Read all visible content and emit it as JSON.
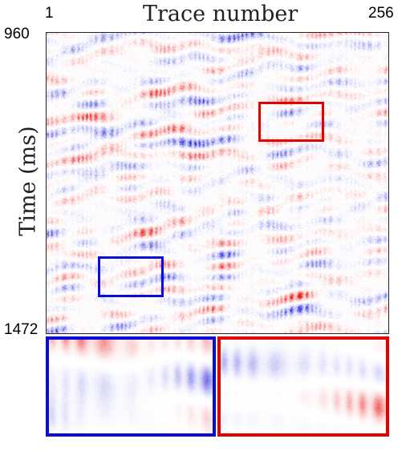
{
  "figure": {
    "title": "Trace number",
    "x_tick_start": "1",
    "x_tick_end": "256",
    "y_tick_start": "960",
    "y_tick_end": "1472",
    "y_label": "Time (ms)"
  },
  "colors": {
    "positive": "#e50000",
    "negative": "#0b0bd6",
    "background": "#ffffff",
    "roi_red": "#e50000",
    "roi_blue": "#0b0bd6"
  },
  "colormap": "seismic (blue-white-red)",
  "regions_of_interest": [
    {
      "name": "red-roi",
      "color": "red",
      "magnified_in": "right-inset"
    },
    {
      "name": "blue-roi",
      "color": "blue",
      "magnified_in": "left-inset"
    }
  ]
}
